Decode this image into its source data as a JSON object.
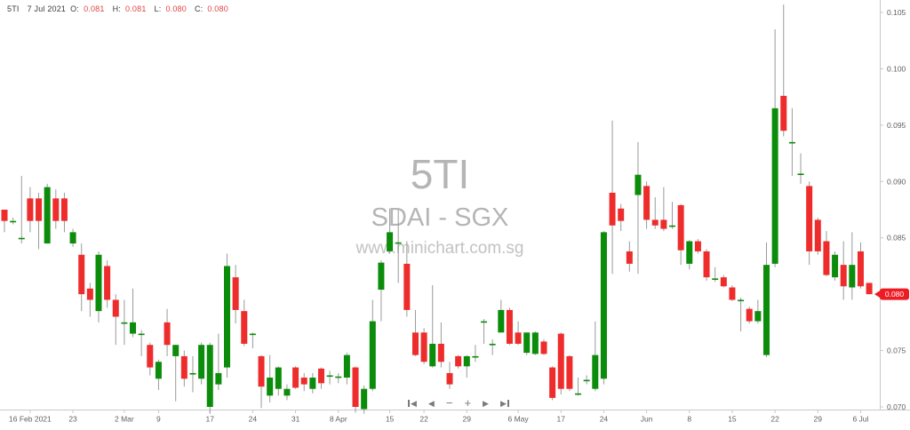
{
  "header": {
    "symbol": "5TI",
    "date": "7 Jul 2021",
    "open_label": "O:",
    "open": "0.081",
    "high_label": "H:",
    "high": "0.081",
    "low_label": "L:",
    "low": "0.080",
    "close_label": "C:",
    "close": "0.080"
  },
  "watermark": {
    "symbol": "5TI",
    "name": "SDAI - SGX",
    "site": "www.minichart.com.sg"
  },
  "toolbar": {
    "buttons": [
      {
        "name": "skip-to-start",
        "glyph": "◀"
      },
      {
        "name": "step-back",
        "glyph": "◀"
      },
      {
        "name": "zoom-out",
        "glyph": "−"
      },
      {
        "name": "zoom-in",
        "glyph": "+"
      },
      {
        "name": "step-forward",
        "glyph": "▶"
      },
      {
        "name": "skip-to-end",
        "glyph": "▶"
      }
    ]
  },
  "price_tag": {
    "value": "0.080",
    "price": 0.08
  },
  "colors": {
    "up": "#0b8c0b",
    "down": "#ee2c2c",
    "wick": "#9a9a9a",
    "axis_line": "#c8c8c8",
    "axis_text": "#606060",
    "header_text": "#3c3c3c",
    "header_value": "#e04545",
    "watermark": "#b5b5b5",
    "price_tag_bg": "#ed1c24",
    "price_tag_text": "#ffffff"
  },
  "chart_data": {
    "type": "candlestick",
    "title": "5TI SDAI - SGX daily candlestick chart",
    "ylim": [
      0.07,
      0.105
    ],
    "grid": false,
    "y_ticks": [
      "0.105",
      "0.100",
      "0.095",
      "0.090",
      "0.085",
      "0.080",
      "0.075",
      "0.070"
    ],
    "x_ticks": [
      {
        "label": "16 Feb 2021",
        "i": 3
      },
      {
        "label": "23",
        "i": 8
      },
      {
        "label": "2 Mar",
        "i": 14
      },
      {
        "label": "9",
        "i": 18
      },
      {
        "label": "17",
        "i": 24
      },
      {
        "label": "24",
        "i": 29
      },
      {
        "label": "31",
        "i": 34
      },
      {
        "label": "8 Apr",
        "i": 39
      },
      {
        "label": "15",
        "i": 45
      },
      {
        "label": "22",
        "i": 49
      },
      {
        "label": "29",
        "i": 54
      },
      {
        "label": "6 May",
        "i": 60
      },
      {
        "label": "17",
        "i": 65
      },
      {
        "label": "24",
        "i": 70
      },
      {
        "label": "Jun",
        "i": 75
      },
      {
        "label": "8",
        "i": 80
      },
      {
        "label": "15",
        "i": 85
      },
      {
        "label": "22",
        "i": 90
      },
      {
        "label": "29",
        "i": 95
      },
      {
        "label": "6 Jul",
        "i": 100
      }
    ],
    "ohlc": [
      [
        0.0875,
        0.0875,
        0.0855,
        0.0865
      ],
      [
        0.0865,
        0.0868,
        0.0862,
        0.0865
      ],
      [
        0.085,
        0.0905,
        0.0845,
        0.085
      ],
      [
        0.0885,
        0.0895,
        0.0855,
        0.0865
      ],
      [
        0.0885,
        0.089,
        0.084,
        0.0865
      ],
      [
        0.0845,
        0.0898,
        0.0845,
        0.0895
      ],
      [
        0.0885,
        0.0893,
        0.0858,
        0.0865
      ],
      [
        0.0885,
        0.089,
        0.0855,
        0.0865
      ],
      [
        0.0845,
        0.0858,
        0.0842,
        0.0855
      ],
      [
        0.0835,
        0.0845,
        0.0785,
        0.08
      ],
      [
        0.0805,
        0.081,
        0.078,
        0.0795
      ],
      [
        0.0785,
        0.0838,
        0.0775,
        0.0835
      ],
      [
        0.0825,
        0.083,
        0.0788,
        0.0795
      ],
      [
        0.0795,
        0.08,
        0.0755,
        0.078
      ],
      [
        0.0775,
        0.0795,
        0.0755,
        0.0775
      ],
      [
        0.0765,
        0.0805,
        0.0762,
        0.0775
      ],
      [
        0.0765,
        0.0768,
        0.0745,
        0.0765
      ],
      [
        0.0755,
        0.0757,
        0.0728,
        0.0735
      ],
      [
        0.0725,
        0.0742,
        0.0715,
        0.074
      ],
      [
        0.0775,
        0.0787,
        0.0745,
        0.0755
      ],
      [
        0.0745,
        0.0755,
        0.0705,
        0.0755
      ],
      [
        0.0745,
        0.075,
        0.0718,
        0.0725
      ],
      [
        0.073,
        0.0745,
        0.0713,
        0.073
      ],
      [
        0.0725,
        0.0757,
        0.072,
        0.0755
      ],
      [
        0.07,
        0.0757,
        0.0694,
        0.0755
      ],
      [
        0.072,
        0.0765,
        0.0715,
        0.073
      ],
      [
        0.0735,
        0.0836,
        0.0726,
        0.0825
      ],
      [
        0.0815,
        0.0826,
        0.0774,
        0.0786
      ],
      [
        0.0785,
        0.0795,
        0.0754,
        0.0756
      ],
      [
        0.0765,
        0.0766,
        0.0752,
        0.0765
      ],
      [
        0.0745,
        0.0746,
        0.0699,
        0.0718
      ],
      [
        0.071,
        0.0746,
        0.0704,
        0.0726
      ],
      [
        0.0716,
        0.0736,
        0.071,
        0.0735
      ],
      [
        0.071,
        0.072,
        0.0706,
        0.0716
      ],
      [
        0.0735,
        0.0736,
        0.0716,
        0.0717
      ],
      [
        0.0726,
        0.073,
        0.0714,
        0.072
      ],
      [
        0.0716,
        0.073,
        0.0712,
        0.0726
      ],
      [
        0.0734,
        0.0735,
        0.0716,
        0.0721
      ],
      [
        0.0728,
        0.0732,
        0.072,
        0.0728
      ],
      [
        0.0727,
        0.073,
        0.0721,
        0.0727
      ],
      [
        0.0726,
        0.0748,
        0.072,
        0.0746
      ],
      [
        0.0735,
        0.0736,
        0.0695,
        0.07
      ],
      [
        0.0698,
        0.0719,
        0.0694,
        0.0716
      ],
      [
        0.0716,
        0.0795,
        0.0714,
        0.0776
      ],
      [
        0.0804,
        0.083,
        0.0776,
        0.0828
      ],
      [
        0.0838,
        0.0876,
        0.0836,
        0.0855
      ],
      [
        0.0846,
        0.0875,
        0.081,
        0.0846
      ],
      [
        0.0827,
        0.0847,
        0.078,
        0.0786
      ],
      [
        0.0766,
        0.0786,
        0.0745,
        0.0746
      ],
      [
        0.0766,
        0.077,
        0.0738,
        0.074
      ],
      [
        0.0736,
        0.0808,
        0.0735,
        0.0756
      ],
      [
        0.0756,
        0.0775,
        0.0735,
        0.074
      ],
      [
        0.073,
        0.074,
        0.0716,
        0.072
      ],
      [
        0.0745,
        0.0746,
        0.0734,
        0.0736
      ],
      [
        0.0736,
        0.0746,
        0.0726,
        0.0745
      ],
      [
        0.0745,
        0.0755,
        0.074,
        0.0745
      ],
      [
        0.0776,
        0.0778,
        0.0756,
        0.0776
      ],
      [
        0.0756,
        0.076,
        0.0746,
        0.0756
      ],
      [
        0.0766,
        0.0795,
        0.0766,
        0.0786
      ],
      [
        0.0786,
        0.0788,
        0.0755,
        0.0756
      ],
      [
        0.0766,
        0.0776,
        0.0755,
        0.0756
      ],
      [
        0.0748,
        0.0766,
        0.0746,
        0.0766
      ],
      [
        0.0747,
        0.0767,
        0.0746,
        0.0766
      ],
      [
        0.0758,
        0.076,
        0.0746,
        0.0747
      ],
      [
        0.0735,
        0.0736,
        0.0706,
        0.0708
      ],
      [
        0.0765,
        0.0766,
        0.0711,
        0.0716
      ],
      [
        0.0745,
        0.0746,
        0.0714,
        0.0716
      ],
      [
        0.0712,
        0.0726,
        0.071,
        0.0712
      ],
      [
        0.0724,
        0.0728,
        0.072,
        0.0724
      ],
      [
        0.0716,
        0.0776,
        0.0714,
        0.0746
      ],
      [
        0.0725,
        0.0856,
        0.072,
        0.0855
      ],
      [
        0.089,
        0.0954,
        0.0818,
        0.0861
      ],
      [
        0.0876,
        0.088,
        0.0856,
        0.0865
      ],
      [
        0.0838,
        0.0847,
        0.082,
        0.0827
      ],
      [
        0.0888,
        0.0935,
        0.0818,
        0.0906
      ],
      [
        0.0896,
        0.09,
        0.0858,
        0.0866
      ],
      [
        0.0866,
        0.0886,
        0.0858,
        0.0861
      ],
      [
        0.0866,
        0.0895,
        0.0856,
        0.0858
      ],
      [
        0.0861,
        0.0882,
        0.0858,
        0.0861
      ],
      [
        0.0879,
        0.088,
        0.0826,
        0.0839
      ],
      [
        0.0827,
        0.0848,
        0.0822,
        0.0847
      ],
      [
        0.0847,
        0.0849,
        0.0836,
        0.0838
      ],
      [
        0.0838,
        0.084,
        0.0812,
        0.0815
      ],
      [
        0.0814,
        0.0824,
        0.0811,
        0.0814
      ],
      [
        0.0815,
        0.0817,
        0.0806,
        0.0807
      ],
      [
        0.0806,
        0.0808,
        0.0794,
        0.0795
      ],
      [
        0.0795,
        0.0797,
        0.0767,
        0.0795
      ],
      [
        0.0787,
        0.0789,
        0.0774,
        0.0776
      ],
      [
        0.0776,
        0.0795,
        0.0774,
        0.0785
      ],
      [
        0.0746,
        0.0846,
        0.0744,
        0.0826
      ],
      [
        0.0827,
        0.1035,
        0.0824,
        0.0965
      ],
      [
        0.0976,
        0.1057,
        0.094,
        0.0945
      ],
      [
        0.0935,
        0.0965,
        0.0905,
        0.0935
      ],
      [
        0.0907,
        0.0925,
        0.0898,
        0.0907
      ],
      [
        0.0896,
        0.09,
        0.0826,
        0.0838
      ],
      [
        0.0866,
        0.0868,
        0.0835,
        0.0838
      ],
      [
        0.0847,
        0.0856,
        0.0816,
        0.0817
      ],
      [
        0.0815,
        0.0838,
        0.0812,
        0.0835
      ],
      [
        0.0826,
        0.0847,
        0.0795,
        0.0807
      ],
      [
        0.0806,
        0.0855,
        0.0795,
        0.0826
      ],
      [
        0.0838,
        0.0846,
        0.0805,
        0.0807
      ],
      [
        0.081,
        0.081,
        0.08,
        0.08
      ]
    ]
  }
}
